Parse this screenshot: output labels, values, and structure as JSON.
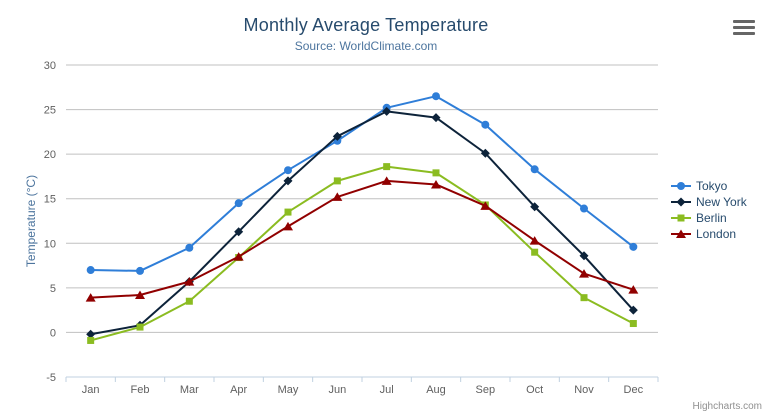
{
  "chart_data": {
    "type": "line",
    "title": "Monthly Average Temperature",
    "subtitle": "Source: WorldClimate.com",
    "xlabel": "",
    "ylabel": "Temperature (°C)",
    "ylim": [
      -5,
      30
    ],
    "yticks": [
      -5,
      0,
      5,
      10,
      15,
      20,
      25,
      30
    ],
    "grid": true,
    "legend_position": "right",
    "categories": [
      "Jan",
      "Feb",
      "Mar",
      "Apr",
      "May",
      "Jun",
      "Jul",
      "Aug",
      "Sep",
      "Oct",
      "Nov",
      "Dec"
    ],
    "series": [
      {
        "name": "Tokyo",
        "color": "#2f7ed8",
        "marker": "circle",
        "values": [
          7.0,
          6.9,
          9.5,
          14.5,
          18.2,
          21.5,
          25.2,
          26.5,
          23.3,
          18.3,
          13.9,
          9.6
        ]
      },
      {
        "name": "New York",
        "color": "#0d233a",
        "marker": "diamond",
        "values": [
          -0.2,
          0.8,
          5.7,
          11.3,
          17.0,
          22.0,
          24.8,
          24.1,
          20.1,
          14.1,
          8.6,
          2.5
        ]
      },
      {
        "name": "Berlin",
        "color": "#8bbc21",
        "marker": "square",
        "values": [
          -0.9,
          0.6,
          3.5,
          8.4,
          13.5,
          17.0,
          18.6,
          17.9,
          14.3,
          9.0,
          3.9,
          1.0
        ]
      },
      {
        "name": "London",
        "color": "#910000",
        "marker": "triangle",
        "values": [
          3.9,
          4.2,
          5.7,
          8.5,
          11.9,
          15.2,
          17.0,
          16.6,
          14.2,
          10.3,
          6.6,
          4.8
        ]
      }
    ]
  },
  "colors": {
    "background": "#ffffff",
    "title_text": "#274b6d",
    "subtitle_text": "#4d759e",
    "axis_title_text": "#4d759e",
    "axis_label_text": "#606060",
    "gridline": "#c0c0c0",
    "axis_line": "#c0d0e0",
    "legend_text": "#274b6d",
    "credits_text": "#909090",
    "menu_icon": "#666666"
  },
  "menu": {
    "icon": "hamburger-icon"
  },
  "credits": {
    "label": "Highcharts.com"
  }
}
